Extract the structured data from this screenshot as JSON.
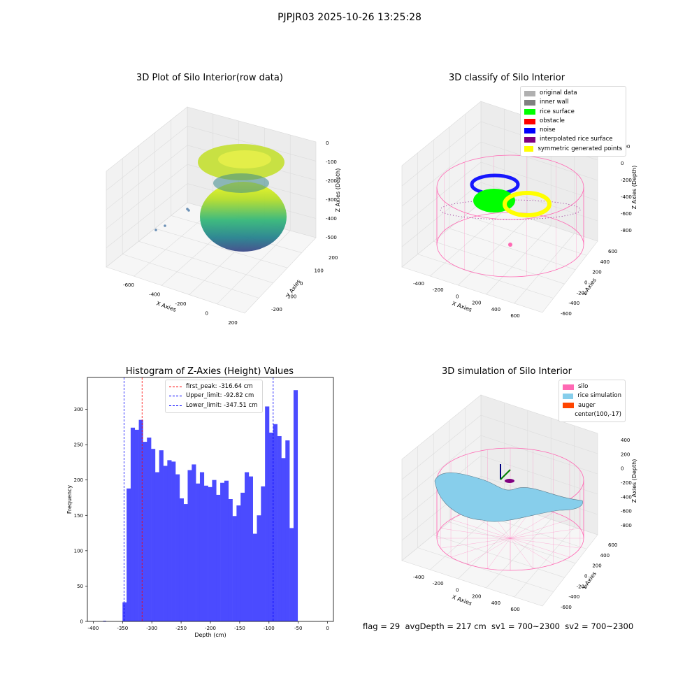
{
  "suptitle": "PJPJR03 2025-10-26 13:25:28",
  "footer": "flag = 29  avgDepth = 217 cm  sv1 = 700~2300  sv2 = 700~2300",
  "colors": {
    "silo": "#ff69b4",
    "rice_sim": "#87ceeb",
    "auger": "#ff4500",
    "hist": "#4b4bff",
    "original": "#b0b0b0",
    "inner_wall": "#808080",
    "rice_surface": "#00ff00",
    "obstacle": "#ff0000",
    "noise": "#0000ff",
    "interp": "#800080",
    "sym": "#ffff00"
  },
  "panel1": {
    "title": "3D Plot of Silo Interior(row data)",
    "xlabel": "X Axies",
    "ylabel": "Y Axies",
    "zlabel": "Z Axies (Depth)",
    "xticks": [
      "-600",
      "-400",
      "-200",
      "0",
      "200"
    ],
    "yticks": [
      "-200",
      "-100",
      "0",
      "100",
      "200"
    ],
    "zticks": [
      "0",
      "-100",
      "-200",
      "-300",
      "-400",
      "-500"
    ]
  },
  "panel2": {
    "title": "3D classify of Silo Interior",
    "xlabel": "X Axies",
    "ylabel": "Y Axies",
    "zlabel": "Z Axies (Depth)",
    "xticks": [
      "-400",
      "-200",
      "0",
      "200",
      "400",
      "600"
    ],
    "yticks": [
      "-600",
      "-400",
      "-200",
      "0",
      "200",
      "400",
      "600"
    ],
    "zticks": [
      "200",
      "0",
      "-200",
      "-400",
      "-600",
      "-800"
    ],
    "legend": [
      {
        "label": "original data",
        "color": "#b0b0b0"
      },
      {
        "label": "inner wall",
        "color": "#808080"
      },
      {
        "label": "rice surface",
        "color": "#00ff00"
      },
      {
        "label": "obstacle",
        "color": "#ff0000"
      },
      {
        "label": "noise",
        "color": "#0000ff"
      },
      {
        "label": "interpolated rice surface",
        "color": "#800080"
      },
      {
        "label": "symmetric generated points",
        "color": "#ffff00"
      }
    ]
  },
  "panel4": {
    "title": "3D simulation of Silo Interior",
    "xlabel": "X Axies",
    "ylabel": "Y Axies",
    "zlabel": "Z Axies (Depth)",
    "xticks": [
      "-400",
      "-200",
      "0",
      "200",
      "400",
      "600"
    ],
    "yticks": [
      "-600",
      "-400",
      "-200",
      "0",
      "200",
      "400",
      "600"
    ],
    "zticks": [
      "400",
      "200",
      "0",
      "-200",
      "-400",
      "-600",
      "-800"
    ],
    "legend": [
      {
        "label": "silo",
        "color": "#ff69b4"
      },
      {
        "label": "rice simulation",
        "color": "#87ceeb"
      },
      {
        "label": "auger",
        "color": "#ff4500"
      },
      {
        "label": "center(100,-17)",
        "color": ""
      }
    ]
  },
  "chart_data": {
    "type": "bar",
    "title": "Histogram of Z-Axies (Height) Values",
    "xlabel": "Depth (cm)",
    "ylabel": "Frequency",
    "xlim": [
      -410,
      10
    ],
    "ylim": [
      0,
      345
    ],
    "xticks": [
      -400,
      -350,
      -300,
      -250,
      -200,
      -150,
      -100,
      -50,
      0
    ],
    "yticks": [
      0,
      50,
      100,
      150,
      200,
      250,
      300
    ],
    "bin_start": -350,
    "bin_width": 6.95,
    "values": [
      27,
      188,
      274,
      271,
      285,
      254,
      260,
      244,
      211,
      242,
      220,
      228,
      226,
      208,
      174,
      166,
      214,
      222,
      195,
      211,
      192,
      190,
      200,
      179,
      196,
      199,
      173,
      149,
      164,
      182,
      211,
      205,
      124,
      150,
      191,
      304,
      267,
      279,
      262,
      231,
      256,
      132,
      327
    ],
    "outlier_bins": [
      {
        "x": -383,
        "width": 5,
        "value": 1
      }
    ],
    "lines": [
      {
        "label": "first_peak: -316.64 cm",
        "x": -316.64,
        "color": "#ff0000"
      },
      {
        "label": "Upper_limit: -92.82 cm",
        "x": -92.82,
        "color": "#0000ff"
      },
      {
        "label": "Lower_limit: -347.51 cm",
        "x": -347.51,
        "color": "#0000ff"
      }
    ]
  }
}
